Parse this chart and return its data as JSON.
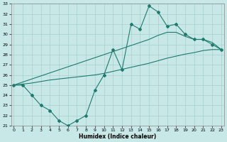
{
  "xlabel": "Humidex (Indice chaleur)",
  "x": [
    0,
    1,
    2,
    3,
    4,
    5,
    6,
    7,
    8,
    9,
    10,
    11,
    12,
    13,
    14,
    15,
    16,
    17,
    18,
    19,
    20,
    21,
    22,
    23
  ],
  "y_main": [
    25.0,
    25.0,
    24.0,
    23.0,
    22.5,
    21.5,
    21.0,
    21.5,
    22.0,
    24.5,
    26.0,
    28.5,
    26.5,
    31.0,
    30.5,
    32.8,
    32.2,
    30.8,
    31.0,
    30.0,
    29.5,
    29.5,
    29.0,
    28.5
  ],
  "y_upper": [
    25.0,
    25.3,
    25.6,
    25.9,
    26.2,
    26.5,
    26.8,
    27.1,
    27.4,
    27.7,
    28.0,
    28.3,
    28.6,
    28.9,
    29.2,
    29.5,
    29.9,
    30.2,
    30.2,
    29.8,
    29.5,
    29.5,
    29.2,
    28.5
  ],
  "y_lower": [
    25.0,
    25.1,
    25.2,
    25.35,
    25.5,
    25.6,
    25.7,
    25.8,
    25.9,
    26.0,
    26.15,
    26.35,
    26.55,
    26.75,
    26.95,
    27.15,
    27.4,
    27.65,
    27.85,
    28.05,
    28.2,
    28.4,
    28.5,
    28.5
  ],
  "ylim": [
    21,
    33
  ],
  "xlim": [
    0,
    23
  ],
  "yticks": [
    21,
    22,
    23,
    24,
    25,
    26,
    27,
    28,
    29,
    30,
    31,
    32,
    33
  ],
  "xticks": [
    0,
    1,
    2,
    3,
    4,
    5,
    6,
    7,
    8,
    9,
    10,
    11,
    12,
    13,
    14,
    15,
    16,
    17,
    18,
    19,
    20,
    21,
    22,
    23
  ],
  "color": "#1e7a6e",
  "bg_color": "#c8e8e8",
  "grid_color": "#a8cfcf"
}
